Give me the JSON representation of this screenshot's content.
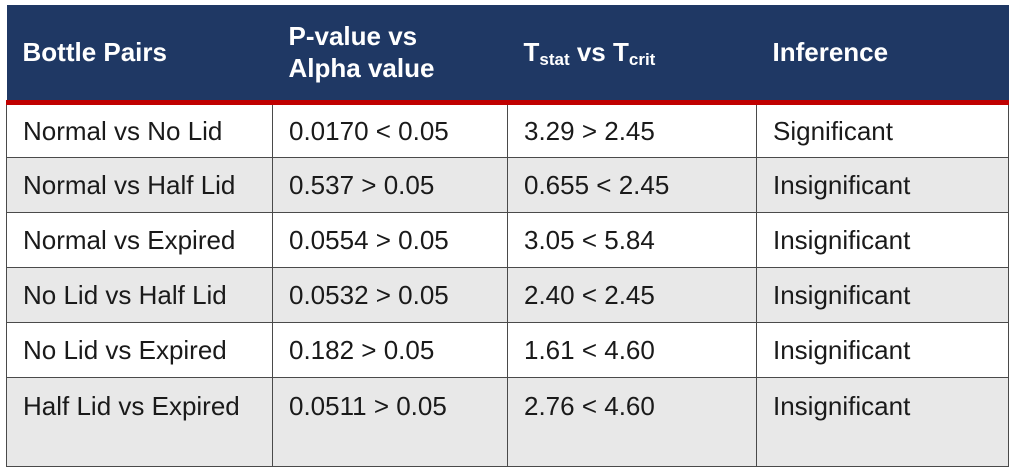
{
  "headers": {
    "bottle_pairs": "Bottle Pairs",
    "pvalue": "P-value vs Alpha value",
    "tstat_main": "T",
    "tstat_sub": "stat",
    "tstat_vs": " vs T",
    "tcrit_sub": "crit",
    "inference": "Inference"
  },
  "rows": [
    {
      "pair": "Normal vs No Lid",
      "p": "0.0170 < 0.05",
      "t": "3.29 > 2.45",
      "inference": "Significant"
    },
    {
      "pair": "Normal vs Half Lid",
      "p": "0.537 > 0.05",
      "t": "0.655 < 2.45",
      "inference": "Insignificant"
    },
    {
      "pair": "Normal vs Expired",
      "p": "0.0554 > 0.05",
      "t": "3.05 < 5.84",
      "inference": "Insignificant"
    },
    {
      "pair": "No Lid vs Half Lid",
      "p": "0.0532 > 0.05",
      "t": "2.40 < 2.45",
      "inference": "Insignificant"
    },
    {
      "pair": "No Lid vs Expired",
      "p": "0.182 > 0.05",
      "t": "1.61 < 4.60",
      "inference": "Insignificant"
    },
    {
      "pair": "Half Lid vs Expired",
      "p": "0.0511 > 0.05",
      "t": "2.76 < 4.60",
      "inference": "Insignificant"
    }
  ],
  "colors": {
    "header_bg": "#1f3864",
    "header_rule": "#c00000",
    "stripe": "#e8e8e8"
  }
}
